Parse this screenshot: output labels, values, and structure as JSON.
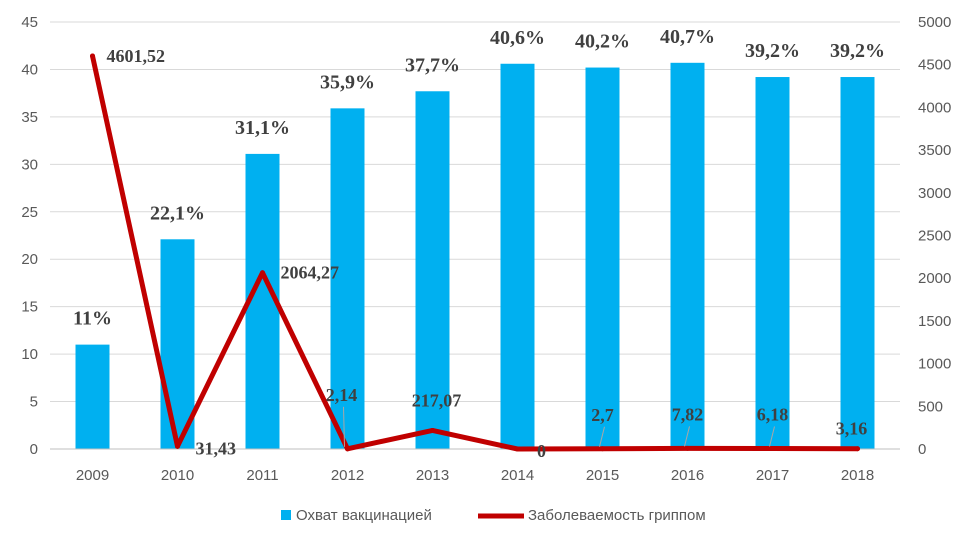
{
  "chart_data": {
    "type": "bar",
    "categories": [
      "2009",
      "2010",
      "2011",
      "2012",
      "2013",
      "2014",
      "2015",
      "2016",
      "2017",
      "2018"
    ],
    "series": [
      {
        "name": "Охват вакцинацией",
        "type": "bar",
        "axis": "left",
        "color": "#00B0F0",
        "values": [
          11,
          22.1,
          31.1,
          35.9,
          37.7,
          40.6,
          40.2,
          40.7,
          39.2,
          39.2
        ],
        "labels": [
          "11%",
          "22,1%",
          "31,1%",
          "35,9%",
          "37,7%",
          "40,6%",
          "40,2%",
          "40,7%",
          "39,2%",
          "39,2%"
        ]
      },
      {
        "name": "Заболеваемость гриппом",
        "type": "line",
        "axis": "right",
        "color": "#C00000",
        "values": [
          4601.52,
          31.43,
          2064.27,
          2.14,
          217.07,
          0,
          2.7,
          7.82,
          6.18,
          3.16
        ],
        "labels": [
          "4601,52",
          "31,43",
          "2064,27",
          "2,14",
          "217,07",
          "0",
          "2,7",
          "7,82",
          "6,18",
          "3,16"
        ]
      }
    ],
    "y_left": {
      "min": 0,
      "max": 45,
      "ticks": [
        "0",
        "5",
        "10",
        "15",
        "20",
        "25",
        "30",
        "35",
        "40",
        "45"
      ]
    },
    "y_right": {
      "min": 0,
      "max": 5000,
      "ticks": [
        "0",
        "500",
        "1000",
        "1500",
        "2000",
        "2500",
        "3000",
        "3500",
        "4000",
        "4500",
        "5000"
      ]
    },
    "grid": true,
    "legend_position": "bottom"
  }
}
